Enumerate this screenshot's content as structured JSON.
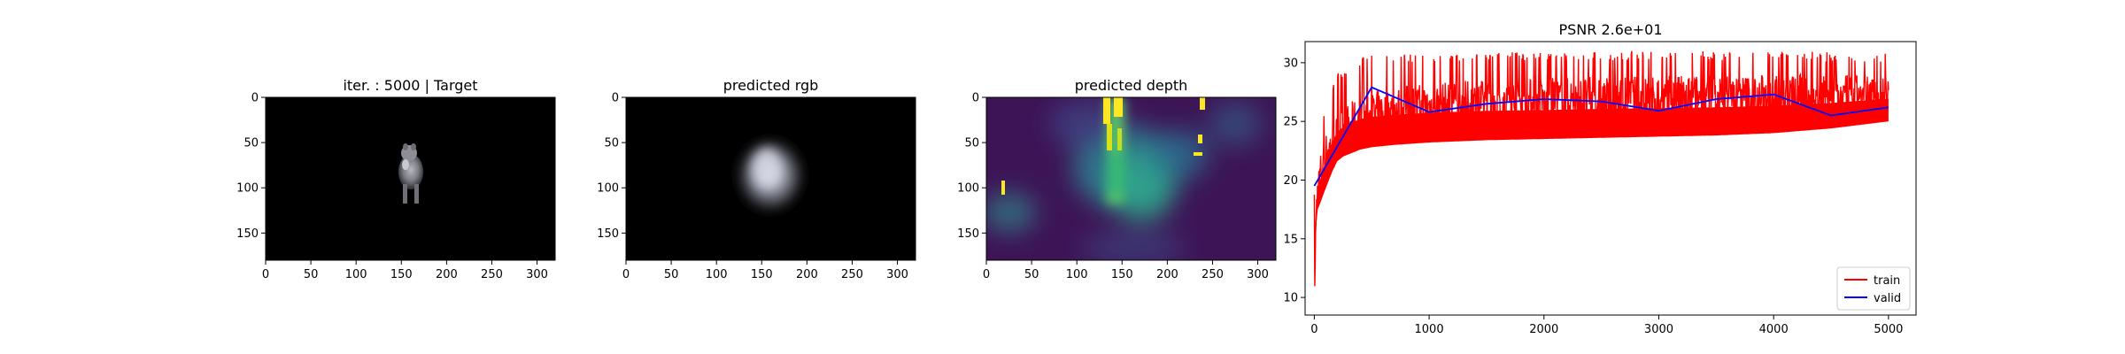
{
  "chart_data": [
    {
      "type": "image",
      "title": "iter. : 5000 | Target",
      "xlim": [
        0,
        320
      ],
      "ylim": [
        180,
        0
      ],
      "xticks": [
        0,
        50,
        100,
        150,
        200,
        250,
        300
      ],
      "yticks": [
        0,
        50,
        100,
        150
      ],
      "xtick_labels": [
        "0",
        "50",
        "100",
        "150",
        "200",
        "250",
        "300"
      ],
      "ytick_labels": [
        "0",
        "50",
        "100",
        "150"
      ]
    },
    {
      "type": "image",
      "title": "predicted rgb",
      "xlim": [
        0,
        320
      ],
      "ylim": [
        180,
        0
      ],
      "xticks": [
        0,
        50,
        100,
        150,
        200,
        250,
        300
      ],
      "yticks": [
        0,
        50,
        100,
        150
      ],
      "xtick_labels": [
        "0",
        "50",
        "100",
        "150",
        "200",
        "250",
        "300"
      ],
      "ytick_labels": [
        "0",
        "50",
        "100",
        "150"
      ]
    },
    {
      "type": "heatmap",
      "title": "predicted depth",
      "xlim": [
        0,
        320
      ],
      "ylim": [
        180,
        0
      ],
      "xticks": [
        0,
        50,
        100,
        150,
        200,
        250,
        300
      ],
      "yticks": [
        0,
        50,
        100,
        150
      ],
      "xtick_labels": [
        "0",
        "50",
        "100",
        "150",
        "200",
        "250",
        "300"
      ],
      "ytick_labels": [
        "0",
        "50",
        "100",
        "150"
      ],
      "colormap": "viridis"
    },
    {
      "type": "line",
      "title": "PSNR 2.6e+01",
      "xlim": [
        -80,
        5240
      ],
      "ylim": [
        8.5,
        31.8
      ],
      "xticks": [
        0,
        1000,
        2000,
        3000,
        4000,
        5000
      ],
      "yticks": [
        10,
        15,
        20,
        25,
        30
      ],
      "xtick_labels": [
        "0",
        "1000",
        "2000",
        "3000",
        "4000",
        "5000"
      ],
      "ytick_labels": [
        "10",
        "15",
        "20",
        "25",
        "30"
      ],
      "legend_position": "lower-right",
      "grid": false,
      "series": [
        {
          "name": "train",
          "color": "#ff0000",
          "x": [
            0,
            5,
            10,
            20,
            30,
            50,
            80,
            120,
            160,
            200,
            250,
            300,
            400,
            500,
            700,
            1000,
            1500,
            2000,
            2500,
            3000,
            3500,
            4000,
            4500,
            5000
          ],
          "y": [
            19.5,
            9.7,
            14.5,
            18.0,
            19.2,
            20.5,
            21.5,
            22.5,
            23.0,
            23.6,
            24.0,
            24.4,
            25.0,
            25.4,
            25.9,
            26.2,
            26.5,
            26.7,
            26.8,
            26.9,
            27.0,
            27.1,
            27.2,
            27.3
          ],
          "low_envelope": [
            19.5,
            9.7,
            14.0,
            16.5,
            17.5,
            18.0,
            18.8,
            19.8,
            20.8,
            21.6,
            22.0,
            22.2,
            22.6,
            22.8,
            23.0,
            23.2,
            23.4,
            23.5,
            23.6,
            23.7,
            23.8,
            24.0,
            24.4,
            25.0
          ],
          "high_envelope": [
            19.5,
            15.2,
            19.5,
            21.5,
            22.5,
            24.0,
            25.5,
            27.2,
            28.3,
            29.0,
            29.6,
            30.0,
            30.4,
            30.6,
            30.7,
            30.8,
            30.9,
            30.9,
            31.0,
            31.0,
            31.0,
            31.0,
            30.9,
            30.8
          ]
        },
        {
          "name": "valid",
          "color": "#0000ff",
          "x": [
            0,
            500,
            1000,
            1500,
            2000,
            2500,
            3000,
            3500,
            4000,
            4500,
            5000
          ],
          "y": [
            19.5,
            27.9,
            25.8,
            26.5,
            26.9,
            26.7,
            25.9,
            26.9,
            27.3,
            25.5,
            26.2
          ]
        }
      ]
    }
  ]
}
